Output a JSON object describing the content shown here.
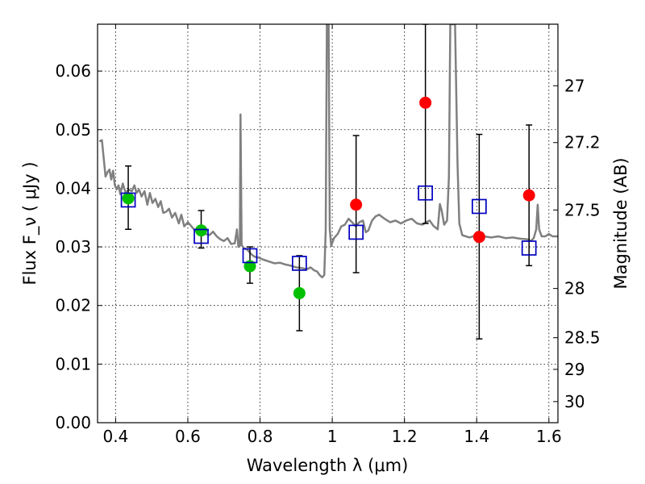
{
  "chart_data": {
    "type": "scatter",
    "xlabel": "Wavelength  λ (μm)",
    "ylabel": "Flux  F_ν  ( μJy )",
    "y2label": "Magnitude (AB)",
    "xlim": [
      0.35,
      1.625
    ],
    "ylim": [
      0.0,
      0.068
    ],
    "grid": true,
    "x_ticks": [
      0.4,
      0.6,
      0.8,
      1.0,
      1.2,
      1.4,
      1.6
    ],
    "x_tick_labels": [
      "0.4",
      "0.6",
      "0.8",
      "1",
      "1.2",
      "1.4",
      "1.6"
    ],
    "y_ticks": [
      0.0,
      0.01,
      0.02,
      0.03,
      0.04,
      0.05,
      0.06
    ],
    "y_tick_labels": [
      "0.00",
      "0.01",
      "0.02",
      "0.03",
      "0.04",
      "0.05",
      "0.06"
    ],
    "y2_ticks": [
      {
        "label": "27",
        "flux": 0.0575
      },
      {
        "label": "27.2",
        "flux": 0.0478
      },
      {
        "label": "27.5",
        "flux": 0.0363
      },
      {
        "label": "28",
        "flux": 0.0229
      },
      {
        "label": "28.5",
        "flux": 0.0145
      },
      {
        "label": "29",
        "flux": 0.0091
      },
      {
        "label": "30",
        "flux": 0.0036
      }
    ],
    "model_spectrum": {
      "color": "#808080",
      "points": [
        [
          0.355,
          0.048
        ],
        [
          0.362,
          0.0482
        ],
        [
          0.368,
          0.0445
        ],
        [
          0.372,
          0.042
        ],
        [
          0.378,
          0.0428
        ],
        [
          0.383,
          0.0432
        ],
        [
          0.388,
          0.0415
        ],
        [
          0.393,
          0.043
        ],
        [
          0.398,
          0.0405
        ],
        [
          0.403,
          0.0398
        ],
        [
          0.408,
          0.0405
        ],
        [
          0.413,
          0.039
        ],
        [
          0.42,
          0.0408
        ],
        [
          0.428,
          0.0392
        ],
        [
          0.436,
          0.0398
        ],
        [
          0.445,
          0.0395
        ],
        [
          0.452,
          0.0405
        ],
        [
          0.458,
          0.0392
        ],
        [
          0.465,
          0.0398
        ],
        [
          0.472,
          0.0386
        ],
        [
          0.48,
          0.0395
        ],
        [
          0.488,
          0.0372
        ],
        [
          0.495,
          0.0392
        ],
        [
          0.502,
          0.0375
        ],
        [
          0.51,
          0.0382
        ],
        [
          0.518,
          0.0368
        ],
        [
          0.525,
          0.0378
        ],
        [
          0.532,
          0.0358
        ],
        [
          0.54,
          0.036
        ],
        [
          0.548,
          0.0365
        ],
        [
          0.556,
          0.035
        ],
        [
          0.565,
          0.0358
        ],
        [
          0.575,
          0.034
        ],
        [
          0.582,
          0.0355
        ],
        [
          0.59,
          0.0335
        ],
        [
          0.6,
          0.0342
        ],
        [
          0.61,
          0.0335
        ],
        [
          0.62,
          0.0328
        ],
        [
          0.63,
          0.0322
        ],
        [
          0.64,
          0.0335
        ],
        [
          0.65,
          0.0322
        ],
        [
          0.66,
          0.032
        ],
        [
          0.67,
          0.0326
        ],
        [
          0.68,
          0.0318
        ],
        [
          0.69,
          0.0313
        ],
        [
          0.7,
          0.031
        ],
        [
          0.71,
          0.0315
        ],
        [
          0.72,
          0.0305
        ],
        [
          0.73,
          0.0306
        ],
        [
          0.736,
          0.033
        ],
        [
          0.74,
          0.03
        ],
        [
          0.744,
          0.0302
        ],
        [
          0.746,
          0.0526
        ],
        [
          0.749,
          0.0303
        ],
        [
          0.755,
          0.0298
        ],
        [
          0.765,
          0.0295
        ],
        [
          0.775,
          0.0288
        ],
        [
          0.785,
          0.0283
        ],
        [
          0.795,
          0.0282
        ],
        [
          0.81,
          0.0278
        ],
        [
          0.825,
          0.0275
        ],
        [
          0.84,
          0.0272
        ],
        [
          0.855,
          0.0273
        ],
        [
          0.87,
          0.027
        ],
        [
          0.885,
          0.0268
        ],
        [
          0.9,
          0.0265
        ],
        [
          0.915,
          0.0264
        ],
        [
          0.93,
          0.0262
        ],
        [
          0.94,
          0.0265
        ],
        [
          0.95,
          0.026
        ],
        [
          0.958,
          0.0258
        ],
        [
          0.965,
          0.0252
        ],
        [
          0.972,
          0.0248
        ],
        [
          0.978,
          0.0252
        ],
        [
          0.982,
          0.033
        ],
        [
          0.985,
          0.068
        ],
        [
          0.99,
          0.068
        ],
        [
          0.993,
          0.033
        ],
        [
          0.997,
          0.0302
        ],
        [
          1.005,
          0.0315
        ],
        [
          1.015,
          0.0322
        ],
        [
          1.025,
          0.0335
        ],
        [
          1.035,
          0.0338
        ],
        [
          1.045,
          0.0348
        ],
        [
          1.055,
          0.0342
        ],
        [
          1.065,
          0.0335
        ],
        [
          1.075,
          0.0342
        ],
        [
          1.085,
          0.0345
        ],
        [
          1.093,
          0.0325
        ],
        [
          1.1,
          0.0328
        ],
        [
          1.11,
          0.0345
        ],
        [
          1.12,
          0.0352
        ],
        [
          1.13,
          0.0355
        ],
        [
          1.145,
          0.0348
        ],
        [
          1.16,
          0.0342
        ],
        [
          1.175,
          0.0345
        ],
        [
          1.19,
          0.034
        ],
        [
          1.205,
          0.0345
        ],
        [
          1.22,
          0.0348
        ],
        [
          1.235,
          0.034
        ],
        [
          1.25,
          0.0338
        ],
        [
          1.26,
          0.0342
        ],
        [
          1.27,
          0.0345
        ],
        [
          1.28,
          0.0336
        ],
        [
          1.292,
          0.033
        ],
        [
          1.298,
          0.0373
        ],
        [
          1.303,
          0.0362
        ],
        [
          1.31,
          0.0338
        ],
        [
          1.318,
          0.0345
        ],
        [
          1.323,
          0.042
        ],
        [
          1.327,
          0.068
        ],
        [
          1.34,
          0.068
        ],
        [
          1.347,
          0.044
        ],
        [
          1.352,
          0.034
        ],
        [
          1.36,
          0.032
        ],
        [
          1.38,
          0.0316
        ],
        [
          1.4,
          0.032
        ],
        [
          1.42,
          0.0318
        ],
        [
          1.44,
          0.0316
        ],
        [
          1.46,
          0.0318
        ],
        [
          1.48,
          0.0315
        ],
        [
          1.5,
          0.0316
        ],
        [
          1.52,
          0.0314
        ],
        [
          1.54,
          0.0313
        ],
        [
          1.55,
          0.031
        ],
        [
          1.558,
          0.0315
        ],
        [
          1.565,
          0.033
        ],
        [
          1.569,
          0.0372
        ],
        [
          1.573,
          0.033
        ],
        [
          1.58,
          0.0318
        ],
        [
          1.59,
          0.0318
        ],
        [
          1.6,
          0.0322
        ],
        [
          1.61,
          0.0318
        ],
        [
          1.625,
          0.0318
        ]
      ]
    },
    "series": [
      {
        "marker": "circle",
        "color": "#00c000",
        "points": [
          {
            "x": 0.435,
            "y": 0.0383
          },
          {
            "x": 0.637,
            "y": 0.0328
          },
          {
            "x": 0.772,
            "y": 0.0267
          },
          {
            "x": 0.909,
            "y": 0.0221
          }
        ]
      },
      {
        "marker": "circle",
        "color": "#ff0000",
        "points": [
          {
            "x": 1.066,
            "y": 0.0372
          },
          {
            "x": 1.258,
            "y": 0.0546
          },
          {
            "x": 1.407,
            "y": 0.0317
          },
          {
            "x": 1.545,
            "y": 0.0388
          }
        ]
      },
      {
        "marker": "open-square",
        "color": "#0000c0",
        "points": [
          {
            "x": 0.435,
            "y": 0.038,
            "err_low": 0.033,
            "err_high": 0.0438
          },
          {
            "x": 0.637,
            "y": 0.0318,
            "err_low": 0.0298,
            "err_high": 0.0362
          },
          {
            "x": 0.772,
            "y": 0.0285,
            "err_low": 0.0238,
            "err_high": 0.03
          },
          {
            "x": 0.909,
            "y": 0.0272,
            "err_low": 0.0157,
            "err_high": 0.0285
          },
          {
            "x": 1.066,
            "y": 0.0325,
            "err_low": 0.0256,
            "err_high": 0.049
          },
          {
            "x": 1.258,
            "y": 0.0392,
            "err_low": 0.034,
            "err_high": 0.068
          },
          {
            "x": 1.407,
            "y": 0.0369,
            "err_low": 0.0143,
            "err_high": 0.0492
          },
          {
            "x": 1.545,
            "y": 0.0298,
            "err_low": 0.0268,
            "err_high": 0.0508
          }
        ]
      }
    ]
  }
}
